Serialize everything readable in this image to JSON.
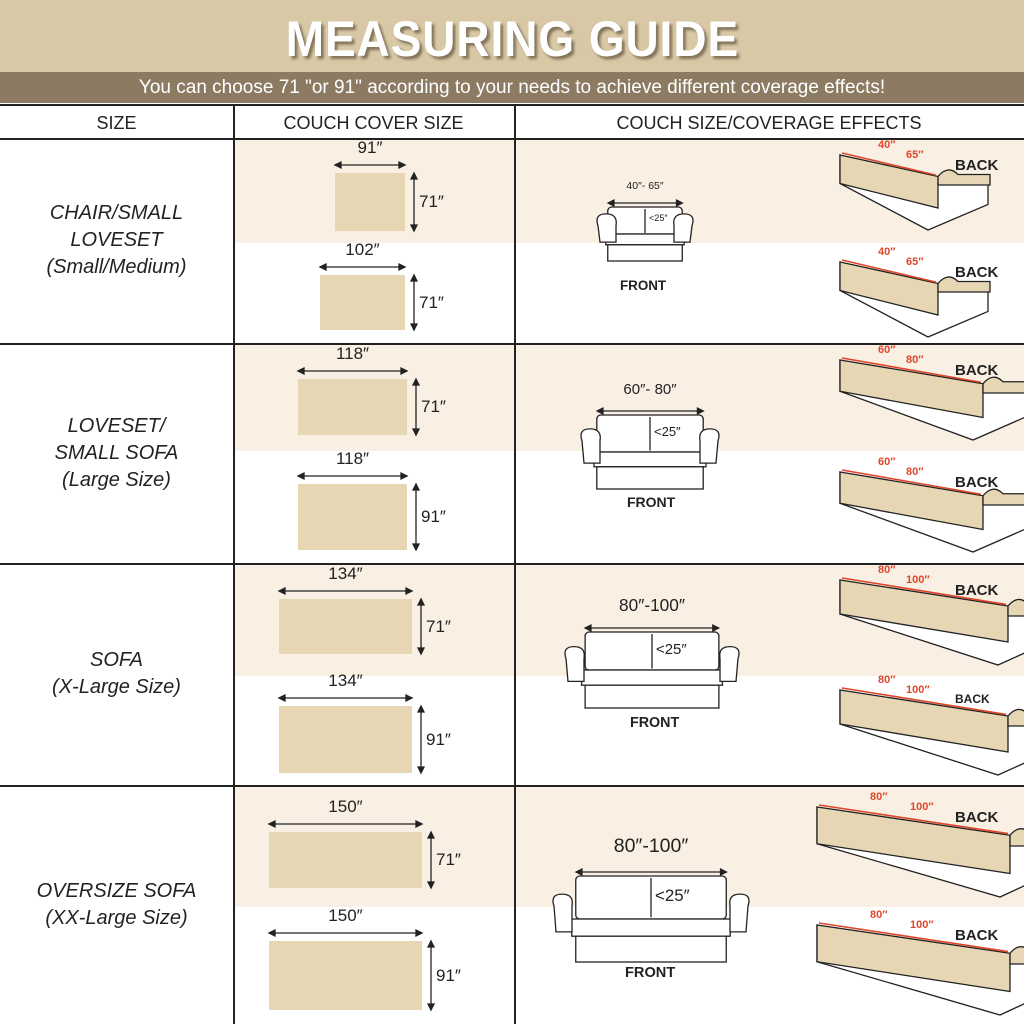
{
  "header": {
    "title": "MEASURING GUIDE",
    "subtitle": "You can choose 71 \"or 91\" according to your needs to achieve different coverage effects!"
  },
  "columns": [
    "SIZE",
    "COUCH COVER SIZE",
    "COUCH SIZE/COVERAGE EFFECTS"
  ],
  "colors": {
    "header_bg": "#d9c8a6",
    "subtitle_bg": "#8c7b62",
    "band": "#f9efe3",
    "cover_fill": "#e6d6b3",
    "measure_red": "#e0462a"
  },
  "rows": [
    {
      "size_label": [
        "CHAIR/SMALL",
        "LOVESET",
        "(Small/Medium)"
      ],
      "covers": [
        {
          "width": "91″",
          "height": "71″"
        },
        {
          "width": "102″",
          "height": "71″"
        }
      ],
      "couch": {
        "width": "40″- 65″",
        "height": "<25″",
        "view": "FRONT"
      },
      "backs": [
        {
          "from": "40″",
          "to": "65″",
          "view": "BACK"
        },
        {
          "from": "40″",
          "to": "65″",
          "view": "BACK"
        }
      ]
    },
    {
      "size_label": [
        "LOVESET/",
        "SMALL SOFA",
        "(Large Size)"
      ],
      "covers": [
        {
          "width": "118″",
          "height": "71″"
        },
        {
          "width": "118″",
          "height": "91″"
        }
      ],
      "couch": {
        "width": "60″- 80″",
        "height": "<25″",
        "view": "FRONT"
      },
      "backs": [
        {
          "from": "60″",
          "to": "80″",
          "view": "BACK"
        },
        {
          "from": "60″",
          "to": "80″",
          "view": "BACK"
        }
      ]
    },
    {
      "size_label": [
        "SOFA",
        "(X-Large Size)"
      ],
      "covers": [
        {
          "width": "134″",
          "height": "71″"
        },
        {
          "width": "134″",
          "height": "91″"
        }
      ],
      "couch": {
        "width": "80″-100″",
        "height": "<25″",
        "view": "FRONT"
      },
      "backs": [
        {
          "from": "80″",
          "to": "100″",
          "view": "BACK"
        },
        {
          "from": "80″",
          "to": "100″",
          "view": "BACK"
        }
      ]
    },
    {
      "size_label": [
        "OVERSIZE SOFA",
        "(XX-Large  Size)"
      ],
      "covers": [
        {
          "width": "150″",
          "height": "71″"
        },
        {
          "width": "150″",
          "height": "91″"
        }
      ],
      "couch": {
        "width": "80″-100″",
        "height": "<25″",
        "view": "FRONT"
      },
      "backs": [
        {
          "from": "80″",
          "to": "100″",
          "view": "BACK"
        },
        {
          "from": "80″",
          "to": "100″",
          "view": "BACK"
        }
      ]
    }
  ]
}
